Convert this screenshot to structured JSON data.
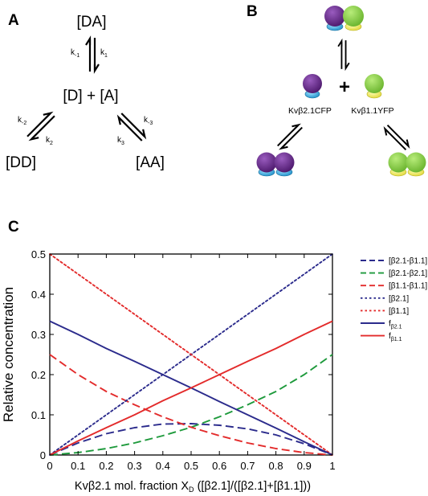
{
  "panels": {
    "a": {
      "letter": "A",
      "species": {
        "da": "[DA]",
        "d_plus_a": "[D] + [A]",
        "dd": "[DD]",
        "aa": "[AA]"
      },
      "rates": {
        "km1": {
          "base": "k",
          "sub": "-1"
        },
        "k1": {
          "base": "k",
          "sub": "1"
        },
        "km2": {
          "base": "k",
          "sub": "-2"
        },
        "k2": {
          "base": "k",
          "sub": "2"
        },
        "km3": {
          "base": "k",
          "sub": "-3"
        },
        "k3": {
          "base": "k",
          "sub": "3"
        }
      }
    },
    "b": {
      "letter": "B",
      "plus": "+",
      "labels": {
        "beta21": "Kvβ2.1CFP",
        "beta11": "Kvβ1.1YFP"
      },
      "colors": {
        "purple": "#6b2a8c",
        "cyan": "#3eb8e8",
        "green": "#8ed14a",
        "yellow": "#f3f06a"
      }
    },
    "c": {
      "letter": "C"
    }
  },
  "chart_data": {
    "type": "line",
    "ylabel": "Relative concentration",
    "xlabel": {
      "main": "Kvβ2.1 mol. fraction X",
      "sub": "D",
      "rest": " ([β2.1]/([β2.1]+[β1.1]))"
    },
    "xlim": [
      0,
      1
    ],
    "ylim": [
      0,
      0.5
    ],
    "xticks": [
      "0",
      "0.1",
      "0.2",
      "0.3",
      "0.4",
      "0.5",
      "0.6",
      "0.7",
      "0.8",
      "0.9",
      "1"
    ],
    "yticks": [
      "0",
      "0.1",
      "0.2",
      "0.3",
      "0.4",
      "0.5"
    ],
    "x": [
      0,
      0.1,
      0.2,
      0.3,
      0.4,
      0.5,
      0.6,
      0.7,
      0.8,
      0.9,
      1
    ],
    "series": [
      {
        "name": "[β2.1-β1.1]",
        "name_sub": "",
        "color": "#2b2b8c",
        "dash": "long",
        "values": [
          0,
          0.03,
          0.053,
          0.068,
          0.077,
          0.078,
          0.074,
          0.065,
          0.05,
          0.028,
          0
        ]
      },
      {
        "name": "[β2.1-β2.1]",
        "name_sub": "",
        "color": "#1e9a3c",
        "dash": "long",
        "values": [
          0,
          0.006,
          0.016,
          0.03,
          0.048,
          0.069,
          0.095,
          0.125,
          0.158,
          0.2,
          0.25
        ]
      },
      {
        "name": "[β1.1-β1.1]",
        "name_sub": "",
        "color": "#e32b2b",
        "dash": "long",
        "values": [
          0.25,
          0.2,
          0.158,
          0.125,
          0.095,
          0.069,
          0.048,
          0.03,
          0.016,
          0.006,
          0
        ]
      },
      {
        "name": "[β2.1]",
        "name_sub": "",
        "color": "#2b2b8c",
        "dash": "dot",
        "values": [
          0,
          0.05,
          0.1,
          0.15,
          0.2,
          0.25,
          0.3,
          0.35,
          0.4,
          0.45,
          0.5
        ]
      },
      {
        "name": "[β1.1]",
        "name_sub": "",
        "color": "#e32b2b",
        "dash": "dot",
        "values": [
          0.5,
          0.45,
          0.4,
          0.35,
          0.3,
          0.25,
          0.2,
          0.15,
          0.1,
          0.05,
          0
        ]
      },
      {
        "name": "f",
        "name_sub": "β2.1",
        "color": "#2b2b8c",
        "dash": "solid",
        "values": [
          0.333,
          0.3,
          0.265,
          0.233,
          0.2,
          0.167,
          0.133,
          0.1,
          0.067,
          0.033,
          0
        ]
      },
      {
        "name": "f",
        "name_sub": "β1.1",
        "color": "#e32b2b",
        "dash": "solid",
        "values": [
          0,
          0.035,
          0.068,
          0.1,
          0.135,
          0.167,
          0.2,
          0.233,
          0.265,
          0.3,
          0.333
        ]
      }
    ],
    "legend_placement": "right",
    "grid": false
  }
}
